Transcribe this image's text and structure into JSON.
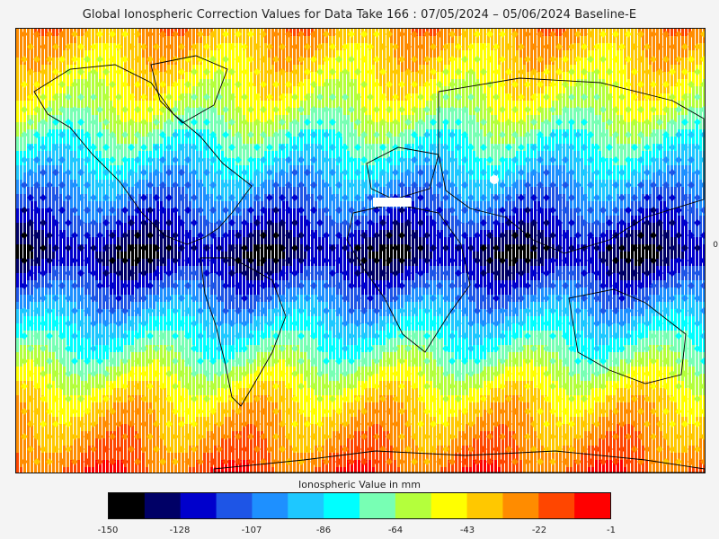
{
  "title": "Global Ionospheric Correction Values for Data Take 166 : 07/05/2024 – 05/06/2024 Baseline-E",
  "legend": {
    "title": "Ionospheric Value in mm",
    "min": -150,
    "max": -1,
    "tick_labels": [
      "-150",
      "-128",
      "-107",
      "-86",
      "-64",
      "-43",
      "-22",
      "-1"
    ],
    "colors": [
      "#000000",
      "#000066",
      "#0000cc",
      "#1e55e6",
      "#1e90ff",
      "#1ec8ff",
      "#00ffff",
      "#78ffb4",
      "#b4ff3c",
      "#ffff00",
      "#ffc800",
      "#ff8c00",
      "#ff4600",
      "#ff0000"
    ]
  },
  "map": {
    "right_edge_label": "0",
    "latitude_bands": [
      {
        "band": "arctic",
        "dominant_value_mm": -30
      },
      {
        "band": "northern mid-latitudes",
        "dominant_value_mm": -55
      },
      {
        "band": "northern low-latitudes",
        "dominant_value_mm": -95
      },
      {
        "band": "equatorial",
        "dominant_value_mm": -135
      },
      {
        "band": "southern low-latitudes",
        "dominant_value_mm": -85
      },
      {
        "band": "southern mid-latitudes",
        "dominant_value_mm": -40
      },
      {
        "band": "antarctic",
        "dominant_value_mm": -15
      }
    ]
  }
}
